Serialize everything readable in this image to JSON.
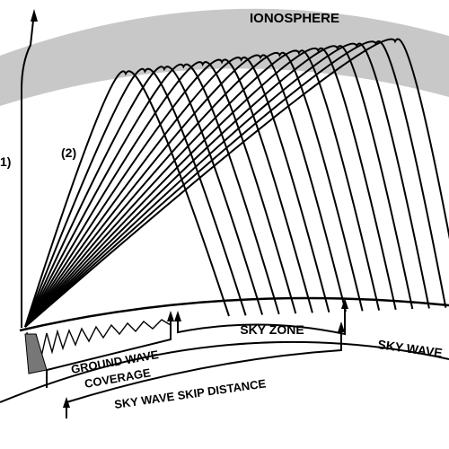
{
  "diagram": {
    "ionosphere_label": "IONOSPHERE",
    "ray_label_1": "1)",
    "ray_label_2": "(2)",
    "sky_zone_label": "SKY ZONE",
    "sky_wave_label": "SKY WAVE",
    "ground_wave_line1": "GROUND WAVE",
    "ground_wave_line2": "COVERAGE",
    "skip_distance_label": "SKY WAVE SKIP DISTANCE",
    "colors": {
      "ionosphere": "#c8c8c8",
      "ink": "#000000",
      "background": "#ffffff"
    }
  }
}
